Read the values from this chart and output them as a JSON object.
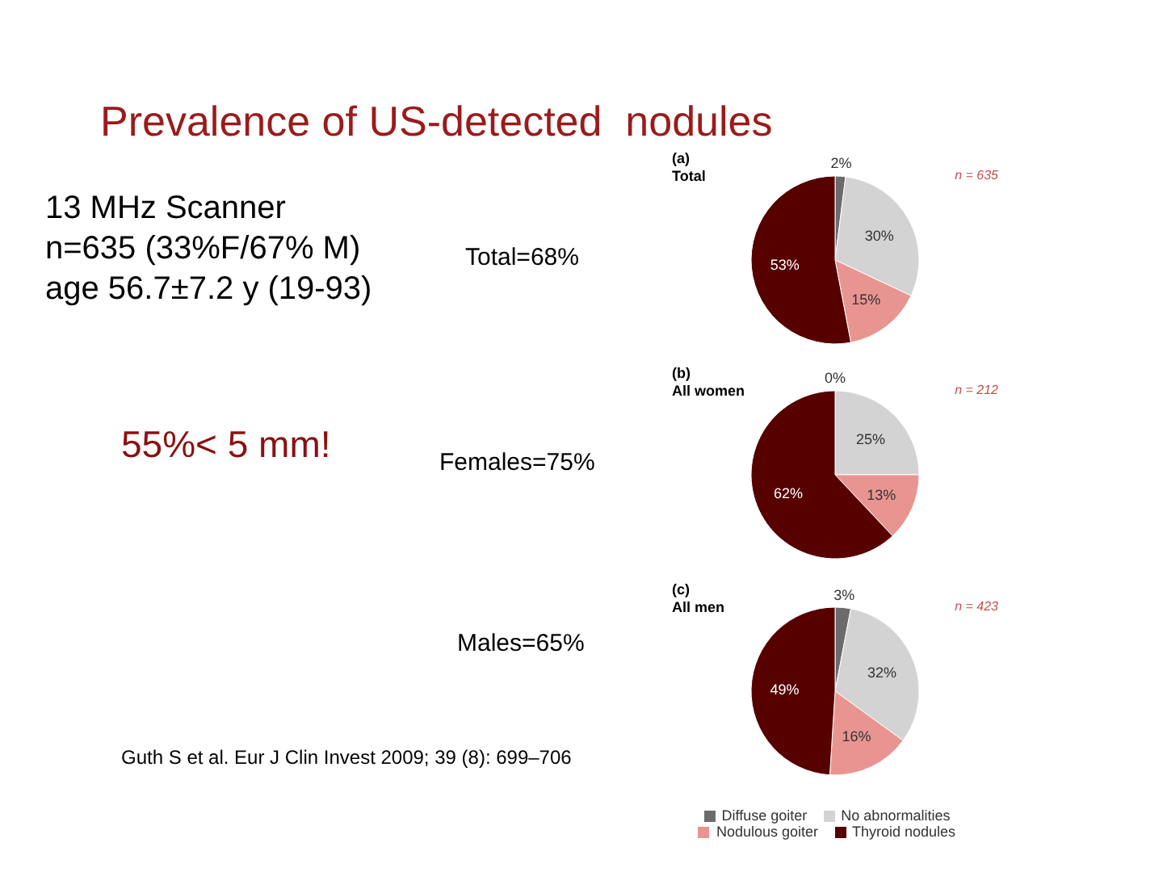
{
  "chart_data": [
    {
      "type": "other",
      "title": "Prevalence of US-detected  nodules",
      "annotations": [
        "13 MHz Scanner",
        "n=635 (33%F/67% M)",
        "age 56.7±7.2 y (19-93)",
        "Total=68%",
        "55%< 5 mm!",
        "Females=75%",
        "Males=65%",
        "Guth S et al. Eur J Clin Invest 2009; 39 (8): 699–706"
      ]
    },
    {
      "type": "pie",
      "title": "(a)",
      "subtitle": "Total",
      "annotations": [
        "n = 635"
      ],
      "categories": [
        null,
        null,
        null,
        null
      ],
      "values": [
        2,
        30,
        15,
        53
      ],
      "value_labels": [
        "2%",
        "30%",
        "15%",
        "53%"
      ],
      "colors": [
        "#6b6b6b",
        "#d3d3d3",
        "#e89592",
        "#560000"
      ],
      "legend": false
    },
    {
      "type": "pie",
      "title": "(b)",
      "subtitle": "All women",
      "annotations": [
        "n = 212"
      ],
      "categories": [
        null,
        null,
        null,
        null
      ],
      "values": [
        0,
        25,
        13,
        62
      ],
      "value_labels": [
        "0%",
        "25%",
        "13%",
        "62%"
      ],
      "colors": [
        "#6b6b6b",
        "#d3d3d3",
        "#e89592",
        "#560000"
      ],
      "legend": false
    },
    {
      "type": "pie",
      "title": "(c)",
      "subtitle": "All men",
      "annotations": [
        "n = 423"
      ],
      "categories": [
        "Diffuse goiter",
        "No abnormalities",
        "Nodulous goiter",
        "Thyroid nodules"
      ],
      "values": [
        3,
        32,
        16,
        49
      ],
      "value_labels": [
        "3%",
        "32%",
        "16%",
        "49%"
      ],
      "colors": [
        "#6b6b6b",
        "#d3d3d3",
        "#e89592",
        "#560000"
      ],
      "legend": "bottom"
    }
  ]
}
